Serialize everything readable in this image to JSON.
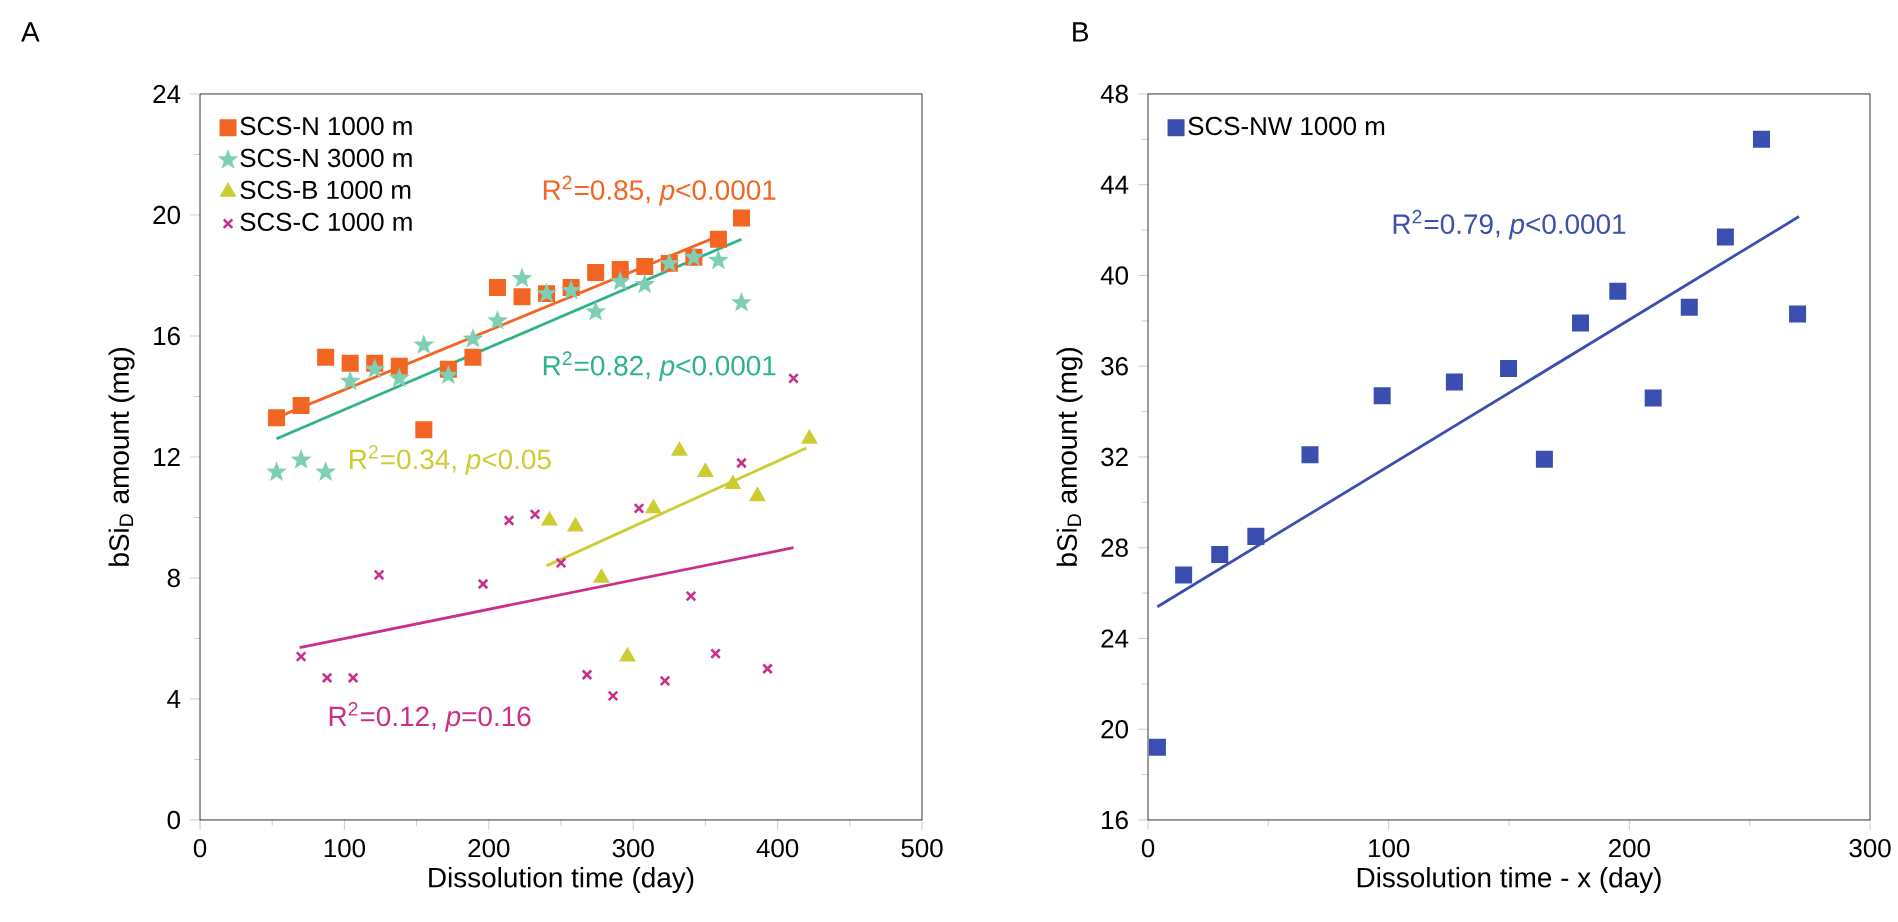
{
  "chart_data": [
    {
      "type": "scatter",
      "title": "A",
      "xlabel": "Dissolution time (day)",
      "ylabel": "bSi$_{D}$ amount (mg)",
      "xlim": [
        0,
        500
      ],
      "ylim": [
        0,
        24
      ],
      "xticks": [
        0,
        100,
        200,
        300,
        400,
        500
      ],
      "yticks": [
        0,
        4,
        8,
        12,
        16,
        20,
        24
      ],
      "legend": "top left",
      "series": [
        {
          "name": "SCS-N 1000 m",
          "color": "#f26522",
          "marker": "square",
          "x": [
            53,
            70,
            87,
            104,
            121,
            138,
            155,
            172,
            189,
            206,
            223,
            240,
            257,
            274,
            291,
            308,
            325,
            342,
            359,
            375
          ],
          "values": [
            13.3,
            13.7,
            15.3,
            15.1,
            15.1,
            15.0,
            12.9,
            14.9,
            15.3,
            17.6,
            17.3,
            17.4,
            17.6,
            18.1,
            18.2,
            18.3,
            18.4,
            18.6,
            19.2,
            19.9
          ]
        },
        {
          "name": "SCS-N 3000 m",
          "color": "#7fcfb5",
          "marker": "star",
          "x": [
            53,
            70,
            87,
            104,
            121,
            138,
            155,
            172,
            189,
            206,
            223,
            240,
            257,
            274,
            291,
            308,
            325,
            342,
            359,
            375
          ],
          "values": [
            11.5,
            11.9,
            11.5,
            14.5,
            14.9,
            14.6,
            15.7,
            14.7,
            15.9,
            16.5,
            17.9,
            17.4,
            17.5,
            16.8,
            17.8,
            17.7,
            18.4,
            18.6,
            18.5,
            17.1
          ]
        },
        {
          "name": "SCS-B 1000 m",
          "color": "#cccc33",
          "marker": "triangle",
          "x": [
            242,
            260,
            278,
            296,
            314,
            332,
            350,
            369,
            386,
            422
          ],
          "values": [
            9.9,
            9.7,
            8.0,
            5.4,
            10.3,
            12.2,
            11.5,
            11.1,
            10.7,
            12.6
          ]
        },
        {
          "name": "SCS-C 1000 m",
          "color": "#c8308c",
          "marker": "cross",
          "x": [
            70,
            88,
            106,
            124,
            196,
            214,
            232,
            250,
            268,
            286,
            304,
            322,
            340,
            357,
            375,
            393,
            411
          ],
          "values": [
            5.4,
            4.7,
            4.7,
            8.1,
            7.8,
            9.9,
            10.1,
            8.5,
            4.8,
            4.1,
            10.3,
            4.6,
            7.4,
            5.5,
            11.8,
            5.0,
            14.6
          ]
        },
        {
          "type": "line",
          "color": "#f26522",
          "x": [
            53,
            359
          ],
          "values": [
            13.3,
            19.3
          ]
        },
        {
          "type": "line",
          "color": "#2db38a",
          "x": [
            53,
            375
          ],
          "values": [
            12.6,
            19.2
          ]
        },
        {
          "type": "line",
          "color": "#cccc33",
          "x": [
            240,
            420
          ],
          "values": [
            8.4,
            12.3
          ]
        },
        {
          "type": "line",
          "color": "#c8308c",
          "x": [
            69,
            411
          ],
          "values": [
            5.7,
            9.0
          ]
        }
      ],
      "annotations": [
        "R$^{2}$=0.85, *p*<0.0001",
        "R$^{2}$=0.82, *p*<0.0001",
        "R$^{2}$=0.34, *p*<0.05",
        "R$^{2}$=0.12, *p*=0.16"
      ]
    },
    {
      "type": "scatter",
      "title": "B",
      "xlabel": "Dissolution time - x (day)",
      "ylabel": "bSi$_{D}$ amount (mg)",
      "xlim": [
        0,
        300
      ],
      "ylim": [
        16,
        48
      ],
      "xticks": [
        0,
        100,
        200,
        300
      ],
      "yticks": [
        16,
        20,
        24,
        28,
        32,
        36,
        40,
        44,
        48
      ],
      "legend": "top left",
      "series": [
        {
          "name": "SCS-NW 1000 m",
          "color": "#3a4fb0",
          "marker": "square",
          "x": [
            3.9,
            14.8,
            29.8,
            44.8,
            67.3,
            97.3,
            127.3,
            149.8,
            164.7,
            179.7,
            195.2,
            209.9,
            224.9,
            239.9,
            254.9,
            269.9
          ],
          "values": [
            19.2,
            26.8,
            27.7,
            28.5,
            32.1,
            34.7,
            35.3,
            35.9,
            31.9,
            37.9,
            39.3,
            34.6,
            38.6,
            41.7,
            46.0,
            38.3
          ]
        },
        {
          "type": "line",
          "color": "#3a4fb0",
          "x": [
            3.9,
            270.5
          ],
          "values": [
            25.4,
            42.6
          ]
        }
      ],
      "annotations": [
        "R$^{2}$=0.79, *p*<0.0001"
      ]
    }
  ]
}
